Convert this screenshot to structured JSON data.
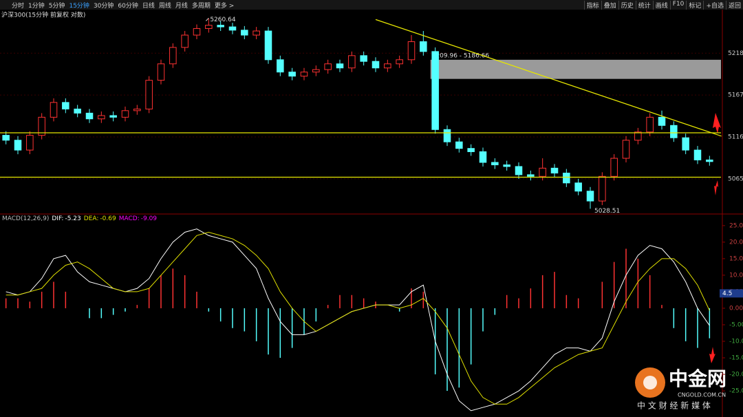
{
  "toolbar": {
    "periods": [
      "分时",
      "1分钟",
      "5分钟",
      "15分钟",
      "30分钟",
      "60分钟",
      "日线",
      "周线",
      "月线",
      "多周期",
      "更多 >"
    ],
    "active_period": 3,
    "tools": [
      "指标",
      "叠加",
      "历史",
      "统计",
      "画线",
      "F10",
      "标记",
      "+自选",
      "返回"
    ]
  },
  "logo": {
    "name": "中金网",
    "site": "CNGOLD.COM.CN",
    "slogan": "中 文 财 经 新 媒 体"
  },
  "chart_data": [
    {
      "type": "candlestick",
      "title": "沪深300(15分钟 前复权 对数)",
      "open": [
        5118,
        5112,
        5100,
        5118,
        5140,
        5158,
        5150,
        5145,
        5138,
        5142,
        5140,
        5148,
        5150,
        5185,
        5205,
        5225,
        5240,
        5248,
        5252,
        5250,
        5246,
        5240,
        5245,
        5210,
        5195,
        5190,
        5195,
        5198,
        5205,
        5200,
        5215,
        5208,
        5200,
        5205,
        5210,
        5232,
        5220,
        5125,
        5110,
        5102,
        5098,
        5085,
        5082,
        5080,
        5070,
        5068,
        5078,
        5072,
        5060,
        5050,
        5038,
        5068,
        5090,
        5112,
        5122,
        5140,
        5130,
        5115,
        5100,
        5088
      ],
      "high": [
        5123,
        5117,
        5123,
        5145,
        5163,
        5163,
        5155,
        5150,
        5147,
        5147,
        5153,
        5155,
        5190,
        5210,
        5230,
        5245,
        5253,
        5260.64,
        5257,
        5255,
        5251,
        5250,
        5250,
        5215,
        5200,
        5200,
        5203,
        5210,
        5210,
        5220,
        5220,
        5213,
        5210,
        5215,
        5240,
        5245,
        5225,
        5130,
        5115,
        5107,
        5103,
        5090,
        5087,
        5085,
        5075,
        5090,
        5083,
        5077,
        5065,
        5055,
        5073,
        5095,
        5117,
        5127,
        5145,
        5148,
        5135,
        5120,
        5105,
        5093
      ],
      "low": [
        5107,
        5095,
        5095,
        5113,
        5135,
        5145,
        5140,
        5133,
        5133,
        5135,
        5135,
        5143,
        5145,
        5180,
        5200,
        5220,
        5235,
        5243,
        5245,
        5241,
        5235,
        5235,
        5205,
        5190,
        5185,
        5185,
        5190,
        5193,
        5195,
        5195,
        5203,
        5195,
        5195,
        5200,
        5205,
        5215,
        5120,
        5105,
        5097,
        5093,
        5080,
        5077,
        5075,
        5065,
        5063,
        5063,
        5067,
        5055,
        5045,
        5028.51,
        5033,
        5063,
        5085,
        5107,
        5117,
        5125,
        5110,
        5095,
        5083,
        5081
      ],
      "close": [
        5112,
        5100,
        5118,
        5140,
        5158,
        5150,
        5145,
        5138,
        5142,
        5140,
        5148,
        5150,
        5185,
        5205,
        5225,
        5240,
        5248,
        5252,
        5250,
        5246,
        5240,
        5245,
        5210,
        5195,
        5190,
        5195,
        5198,
        5205,
        5200,
        5215,
        5208,
        5200,
        5205,
        5210,
        5232,
        5220,
        5125,
        5110,
        5102,
        5098,
        5085,
        5082,
        5080,
        5070,
        5068,
        5078,
        5072,
        5060,
        5050,
        5038,
        5068,
        5090,
        5112,
        5122,
        5140,
        5130,
        5115,
        5100,
        5088,
        5086
      ],
      "up_color": "#ff3232",
      "down_color": "#54ffff",
      "ylim": [
        5023,
        5271
      ],
      "yticks": [
        5218,
        5167,
        5116,
        5065
      ],
      "grid": true,
      "hlines": [
        5121,
        5067
      ],
      "line_color": "#e6e600",
      "trendline": [
        [
          31,
          5259
        ],
        [
          60,
          5117
        ]
      ],
      "zone": [
        5209.96,
        5186.66
      ],
      "zone_label": "5209.96 - 5186.66",
      "zone_color": "#9a9a9a"
    },
    {
      "type": "macd",
      "title": "MACD(12,26,9)",
      "series": [
        {
          "name": "DIF:",
          "color": "#ffffff",
          "values": [
            5,
            4,
            5,
            9,
            15,
            16,
            11,
            8,
            7,
            6,
            5,
            6,
            9,
            15,
            20,
            23,
            24,
            22,
            21,
            20,
            16,
            12,
            3,
            -4,
            -8,
            -8,
            -7,
            -5,
            -3,
            -1,
            0,
            1,
            1,
            1,
            5,
            7,
            -10,
            -20,
            -28,
            -31,
            -30,
            -29,
            -27,
            -25,
            -22,
            -18,
            -14,
            -12,
            -12,
            -13,
            -9,
            2,
            10,
            16,
            19,
            18,
            14,
            8,
            0,
            -5.23
          ]
        },
        {
          "name": "DEA:",
          "color": "#e0e000",
          "values": [
            4,
            4,
            5,
            6,
            10,
            13,
            14,
            12,
            9,
            6,
            5,
            5,
            6,
            10,
            14,
            18,
            22,
            23,
            22,
            21,
            19,
            16,
            12,
            5,
            0,
            -4,
            -7,
            -5,
            -3,
            -1,
            0,
            1,
            1,
            0,
            1,
            3,
            -1,
            -6,
            -14,
            -22,
            -27,
            -29,
            -29,
            -27,
            -24,
            -21,
            -18,
            -16,
            -14,
            -13,
            -12,
            -5,
            2,
            8,
            12,
            15,
            15,
            12,
            7,
            -0.69
          ]
        },
        {
          "name": "MACD:",
          "color": "#ff00ff",
          "values": [
            3,
            3,
            2,
            5,
            8,
            5,
            0,
            -3,
            -3,
            -2,
            -1,
            1,
            6,
            10,
            12,
            10,
            5,
            -1,
            -4,
            -6,
            -7,
            -10,
            -14,
            -15,
            -12,
            -8,
            -4,
            1,
            4,
            4,
            3,
            2,
            0,
            -1,
            6,
            5,
            -20,
            -25,
            -24,
            -17,
            -7,
            -2,
            4,
            3,
            6,
            10,
            11,
            4,
            3,
            0,
            8,
            14,
            18,
            15,
            10,
            1,
            -6,
            -10,
            -12,
            -9.09
          ]
        }
      ],
      "up_color": "#ff3232",
      "down_color": "#54ffff",
      "ylim": [
        -32.9,
        28.3
      ],
      "yticks": [
        {
          "value": 25,
          "label": "25.00"
        },
        {
          "value": 20,
          "label": "20.00"
        },
        {
          "value": 15,
          "label": "15.00"
        },
        {
          "value": 10,
          "label": "10.00"
        },
        {
          "value": 5,
          "label": "5.00"
        },
        {
          "value": 0,
          "label": "0.00"
        },
        {
          "value": -5,
          "label": "-5.00"
        },
        {
          "value": -10,
          "label": "-10.00"
        },
        {
          "value": -15,
          "label": "-15.00"
        },
        {
          "value": -20,
          "label": "-20.00"
        },
        {
          "value": -25,
          "label": "-25.00"
        }
      ],
      "cursor_value": 4.5
    }
  ]
}
